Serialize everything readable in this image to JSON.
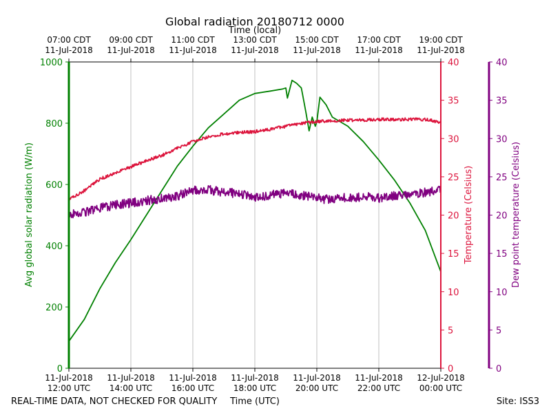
{
  "chart_data": {
    "type": "line",
    "title": "Global radiation 20180712 0000",
    "top_axis_label": "Time (local)",
    "xlabel": "Time (UTC)",
    "footer_left": "REAL-TIME DATA, NOT CHECKED FOR QUALITY",
    "footer_right": "Site: ISS3",
    "x_range_hours": [
      12,
      24
    ],
    "top_ticks": [
      {
        "x": 12,
        "line1": "07:00 CDT",
        "line2": "11-Jul-2018"
      },
      {
        "x": 14,
        "line1": "09:00 CDT",
        "line2": "11-Jul-2018"
      },
      {
        "x": 16,
        "line1": "11:00 CDT",
        "line2": "11-Jul-2018"
      },
      {
        "x": 18,
        "line1": "13:00 CDT",
        "line2": "11-Jul-2018"
      },
      {
        "x": 20,
        "line1": "15:00 CDT",
        "line2": "11-Jul-2018"
      },
      {
        "x": 22,
        "line1": "17:00 CDT",
        "line2": "11-Jul-2018"
      },
      {
        "x": 24,
        "line1": "19:00 CDT",
        "line2": "11-Jul-2018"
      }
    ],
    "bottom_ticks": [
      {
        "x": 12,
        "line1": "11-Jul-2018",
        "line2": "12:00 UTC"
      },
      {
        "x": 14,
        "line1": "11-Jul-2018",
        "line2": "14:00 UTC"
      },
      {
        "x": 16,
        "line1": "11-Jul-2018",
        "line2": "16:00 UTC"
      },
      {
        "x": 18,
        "line1": "11-Jul-2018",
        "line2": "18:00 UTC"
      },
      {
        "x": 20,
        "line1": "11-Jul-2018",
        "line2": "20:00 UTC"
      },
      {
        "x": 22,
        "line1": "11-Jul-2018",
        "line2": "22:00 UTC"
      },
      {
        "x": 24,
        "line1": "12-Jul-2018",
        "line2": "00:00 UTC"
      }
    ],
    "grid": "vertical",
    "axes": {
      "left": {
        "label": "Avg global solar radiation (W/m)",
        "ylim": [
          0,
          1000
        ],
        "ticks": [
          0,
          200,
          400,
          600,
          800,
          1000
        ],
        "color": "#008000"
      },
      "right1": {
        "label": "Temperature (Celsius)",
        "ylim": [
          0,
          40
        ],
        "ticks": [
          0,
          5,
          10,
          15,
          20,
          25,
          30,
          35,
          40
        ],
        "color": "#dc143c"
      },
      "right2": {
        "label": "Dew point temperature (Celsius)",
        "ylim": [
          0,
          40
        ],
        "ticks": [
          0,
          5,
          10,
          15,
          20,
          25,
          30,
          35,
          40
        ],
        "color": "#800080"
      }
    },
    "series": [
      {
        "axis": "left",
        "color": "#008000",
        "points": [
          [
            12.0,
            88
          ],
          [
            12.5,
            160
          ],
          [
            13.0,
            260
          ],
          [
            13.5,
            345
          ],
          [
            14.0,
            420
          ],
          [
            14.5,
            500
          ],
          [
            15.0,
            580
          ],
          [
            15.5,
            660
          ],
          [
            16.0,
            725
          ],
          [
            16.5,
            785
          ],
          [
            17.0,
            830
          ],
          [
            17.5,
            875
          ],
          [
            18.0,
            897
          ],
          [
            18.5,
            905
          ],
          [
            18.9,
            912
          ],
          [
            19.0,
            915
          ],
          [
            19.05,
            882
          ],
          [
            19.2,
            940
          ],
          [
            19.35,
            930
          ],
          [
            19.5,
            915
          ],
          [
            19.55,
            888
          ],
          [
            19.65,
            835
          ],
          [
            19.75,
            775
          ],
          [
            19.85,
            820
          ],
          [
            19.95,
            790
          ],
          [
            20.0,
            805
          ],
          [
            20.1,
            885
          ],
          [
            20.3,
            860
          ],
          [
            20.5,
            820
          ],
          [
            21.0,
            790
          ],
          [
            21.5,
            740
          ],
          [
            22.0,
            680
          ],
          [
            22.5,
            615
          ],
          [
            23.0,
            540
          ],
          [
            23.5,
            450
          ],
          [
            24.0,
            315
          ]
        ]
      },
      {
        "axis": "right1",
        "color": "#dc143c",
        "noise": 0.2,
        "points": [
          [
            12.0,
            22.0
          ],
          [
            12.5,
            23.2
          ],
          [
            13.0,
            24.7
          ],
          [
            13.5,
            25.5
          ],
          [
            14.0,
            26.3
          ],
          [
            14.5,
            27.1
          ],
          [
            15.0,
            27.8
          ],
          [
            15.5,
            28.7
          ],
          [
            16.0,
            29.6
          ],
          [
            16.5,
            30.2
          ],
          [
            17.0,
            30.6
          ],
          [
            17.5,
            30.8
          ],
          [
            18.0,
            30.9
          ],
          [
            18.5,
            31.2
          ],
          [
            19.0,
            31.6
          ],
          [
            19.5,
            32.0
          ],
          [
            20.0,
            32.2
          ],
          [
            20.5,
            32.3
          ],
          [
            21.0,
            32.4
          ],
          [
            21.5,
            32.4
          ],
          [
            22.0,
            32.5
          ],
          [
            22.5,
            32.5
          ],
          [
            23.0,
            32.5
          ],
          [
            23.5,
            32.5
          ],
          [
            24.0,
            32.1
          ]
        ]
      },
      {
        "axis": "right2",
        "color": "#800080",
        "noise": 0.6,
        "points": [
          [
            12.0,
            20.0
          ],
          [
            12.5,
            20.4
          ],
          [
            13.0,
            20.9
          ],
          [
            13.5,
            21.3
          ],
          [
            14.0,
            21.6
          ],
          [
            14.5,
            21.9
          ],
          [
            15.0,
            22.2
          ],
          [
            15.5,
            22.5
          ],
          [
            16.0,
            23.2
          ],
          [
            16.5,
            23.3
          ],
          [
            17.0,
            23.0
          ],
          [
            17.5,
            22.8
          ],
          [
            18.0,
            22.2
          ],
          [
            18.5,
            22.6
          ],
          [
            19.0,
            22.9
          ],
          [
            19.5,
            22.6
          ],
          [
            20.0,
            22.2
          ],
          [
            20.5,
            22.0
          ],
          [
            21.0,
            22.3
          ],
          [
            21.5,
            22.4
          ],
          [
            22.0,
            22.2
          ],
          [
            22.5,
            22.5
          ],
          [
            23.0,
            22.6
          ],
          [
            23.5,
            23.0
          ],
          [
            24.0,
            23.2
          ]
        ]
      }
    ]
  }
}
